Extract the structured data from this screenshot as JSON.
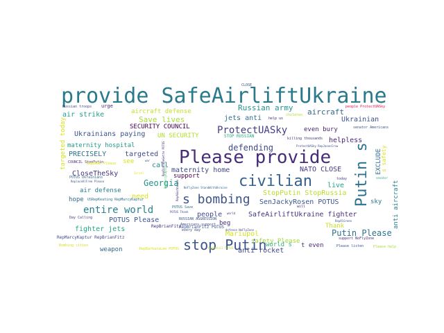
{
  "words": [
    {
      "text": "provide SafeAirliftUkraine",
      "color": "#2a7a8c"
    },
    {
      "text": "Please provide",
      "color": "#472c7a"
    },
    {
      "text": "civilian",
      "color": "#34608d"
    },
    {
      "text": "stop Putin",
      "color": "#3a538b"
    },
    {
      "text": "s bombing",
      "color": "#3b528b"
    },
    {
      "text": "Putin s",
      "color": "#2c728e"
    },
    {
      "text": "ProtectUASky",
      "color": "#433e85"
    },
    {
      "text": "entire world",
      "color": "#26828e"
    },
    {
      "text": "defending",
      "color": "#3e4a89"
    },
    {
      "text": "Putin Please",
      "color": "#2c728e"
    },
    {
      "text": "Georgia",
      "color": "#21918c"
    },
    {
      "text": "Russian army",
      "color": "#1f948c"
    },
    {
      "text": "Save lives",
      "color": "#a5db36"
    },
    {
      "text": "aircraft",
      "color": "#31688e"
    },
    {
      "text": "Ukrainian",
      "color": "#3b528b"
    },
    {
      "text": "maternity home",
      "color": "#3e4989"
    },
    {
      "text": "SECURITY COUNCIL",
      "color": "#440154"
    },
    {
      "text": "UN SECURITY",
      "color": "#b5de2b"
    },
    {
      "text": "Ukrainians paying",
      "color": "#3b528b"
    },
    {
      "text": "PRECISELY",
      "color": "#2d708e"
    },
    {
      "text": "targeted",
      "color": "#3f4788"
    },
    {
      "text": "air strike",
      "color": "#1fa088"
    },
    {
      "text": "aircraft defense",
      "color": "#c2df23"
    },
    {
      "text": "jets anti",
      "color": "#2c728e"
    },
    {
      "text": "even bury",
      "color": "#481f70"
    },
    {
      "text": "helpless",
      "color": "#482475"
    },
    {
      "text": "CloseTheSky",
      "color": "#46327e"
    },
    {
      "text": "air defense",
      "color": "#287c8e"
    },
    {
      "text": "hope",
      "color": "#31688e"
    },
    {
      "text": "fighter jets",
      "color": "#20a386"
    },
    {
      "text": "weapon",
      "color": "#31688e"
    },
    {
      "text": "POTUS Please",
      "color": "#3b528b"
    },
    {
      "text": "SafeAirliftUkraine fighter",
      "color": "#46327e"
    },
    {
      "text": "SenJackyRosen POTUS",
      "color": "#39568c"
    },
    {
      "text": "StopPutin StopRussia",
      "color": "#b8de29"
    },
    {
      "text": "NATO CLOSE",
      "color": "#443983"
    },
    {
      "text": "live",
      "color": "#20a386"
    },
    {
      "text": "sky",
      "color": "#2a788e"
    },
    {
      "text": "safety Please",
      "color": "#a2da37"
    },
    {
      "text": "Thank",
      "color": "#c8e020"
    },
    {
      "text": "world s",
      "color": "#34b679"
    },
    {
      "text": "t even",
      "color": "#482878"
    },
    {
      "text": "Mariupol",
      "color": "#d2e21b"
    },
    {
      "text": "anti rocket",
      "color": "#404688"
    },
    {
      "text": "people",
      "color": "#3f4889"
    },
    {
      "text": "beg",
      "color": "#472d7b"
    },
    {
      "text": "need",
      "color": "#dde318"
    },
    {
      "text": "call",
      "color": "#24878e"
    },
    {
      "text": "see",
      "color": "#dae319"
    },
    {
      "text": "support",
      "color": "#440154"
    },
    {
      "text": "targeted today",
      "color": "#d8e219"
    },
    {
      "text": "maternity hospital",
      "color": "#1f9e89"
    },
    {
      "text": "anti aircraft",
      "color": "#26828e"
    },
    {
      "text": "EXCLUDE",
      "color": "#2f6c8e"
    },
    {
      "text": "s safety",
      "color": "#d8e219"
    },
    {
      "text": "urge",
      "color": "#472a7a"
    },
    {
      "text": "CLOSE",
      "color": "#3b528b"
    },
    {
      "text": "Russian troops",
      "color": "#3e4a89"
    },
    {
      "text": "COUNCIL StopPutin",
      "color": "#472d7b"
    },
    {
      "text": "POTUS Ukrainians",
      "color": "#31688e"
    },
    {
      "text": "RepBrianFitz POTUS",
      "color": "#3b528b"
    },
    {
      "text": "RepBrianFitz",
      "color": "#46327e"
    },
    {
      "text": "RepMarcyKaptur RepBrianFitz",
      "color": "#3f4889"
    },
    {
      "text": "POTUS Save",
      "color": "#2c728e"
    },
    {
      "text": "STOP RUSSIAN",
      "color": "#27ad81"
    },
    {
      "text": "RUSSIAN AGGRESSION",
      "color": "#3b528b"
    },
    {
      "text": "Americans support",
      "color": "#3e4989"
    },
    {
      "text": "people ProtectUASky",
      "color": "#e7104e"
    },
    {
      "text": "senator Americans",
      "color": "#3b528b"
    },
    {
      "text": "USRepKeating RepMarcyKaptur",
      "color": "#2c728e"
    },
    {
      "text": "help us",
      "color": "#482878"
    },
    {
      "text": "children",
      "color": "#b5de2b"
    },
    {
      "text": "every day",
      "color": "#3e4989"
    },
    {
      "text": "today",
      "color": "#3f4788"
    },
    {
      "text": "will",
      "color": "#472d7b"
    },
    {
      "text": "Please listen",
      "color": "#3b528b"
    },
    {
      "text": "Please help",
      "color": "#a5db36"
    },
    {
      "text": "support NoFlyZone",
      "color": "#472d7b"
    },
    {
      "text": "RepBarbaraLee POTUS",
      "color": "#d8e219"
    },
    {
      "text": "Bombing cities",
      "color": "#d2e21b"
    },
    {
      "text": "killing thousands",
      "color": "#46327e"
    },
    {
      "text": "ProtectUASky RepJasonCrow",
      "color": "#3e4a89"
    },
    {
      "text": "NoFlyZone StandWithUkraine",
      "color": "#31688e"
    },
    {
      "text": "RepBRAD Please",
      "color": "#dde318"
    },
    {
      "text": "ReplaceAlFree Please",
      "color": "#3b528b"
    },
    {
      "text": "Day Calling",
      "color": "#404688"
    },
    {
      "text": "RepAGarbarino",
      "color": "#46327e"
    },
    {
      "text": "defense NoFlyZone",
      "color": "#3e4989"
    },
    {
      "text": "RepMarcyKaptur",
      "color": "#4ec36b"
    },
    {
      "text": "RepAlGreen",
      "color": "#3b528b"
    },
    {
      "text": "world",
      "color": "#472d7b"
    },
    {
      "text": "Israel",
      "color": "#e7e419"
    },
    {
      "text": "POTUS Thank",
      "color": "#3e4a89"
    },
    {
      "text": "RepBehnil POTUS",
      "color": "#b5de2b"
    },
    {
      "text": "senator",
      "color": "#1f9e89"
    },
    {
      "text": "war",
      "color": "#3b528b"
    },
    {
      "text": "RepDianaDeGette POTUS",
      "color": "#46327e"
    }
  ]
}
